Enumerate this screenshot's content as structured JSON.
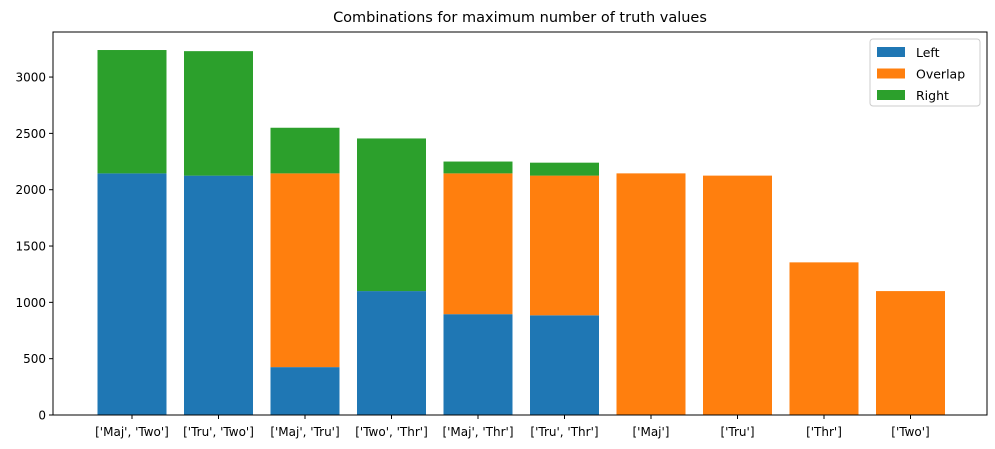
{
  "chart_data": {
    "type": "bar",
    "stacked": true,
    "title": "Combinations for maximum number of truth values",
    "xlabel": "",
    "ylabel": "",
    "categories": [
      "['Maj', 'Two']",
      "['Tru', 'Two']",
      "['Maj', 'Tru']",
      "['Two', 'Thr']",
      "['Maj', 'Thr']",
      "['Tru', 'Thr']",
      "['Maj']",
      "['Tru']",
      "['Thr']",
      "['Two']"
    ],
    "series": [
      {
        "name": "Left",
        "color": "#1f77b4",
        "values": [
          2145,
          2125,
          425,
          1100,
          895,
          885,
          0,
          0,
          0,
          0
        ]
      },
      {
        "name": "Overlap",
        "color": "#ff7f0e",
        "values": [
          0,
          0,
          1720,
          0,
          1250,
          1240,
          2145,
          2125,
          1355,
          1100
        ]
      },
      {
        "name": "Right",
        "color": "#2ca02c",
        "values": [
          1095,
          1105,
          405,
          1355,
          105,
          115,
          0,
          0,
          0,
          0
        ]
      }
    ],
    "ylim": [
      0,
      3400
    ],
    "yticks": [
      0,
      500,
      1000,
      1500,
      2000,
      2500,
      3000
    ],
    "grid": false,
    "legend": {
      "placement": "top-right",
      "entries": [
        "Left",
        "Overlap",
        "Right"
      ]
    }
  }
}
